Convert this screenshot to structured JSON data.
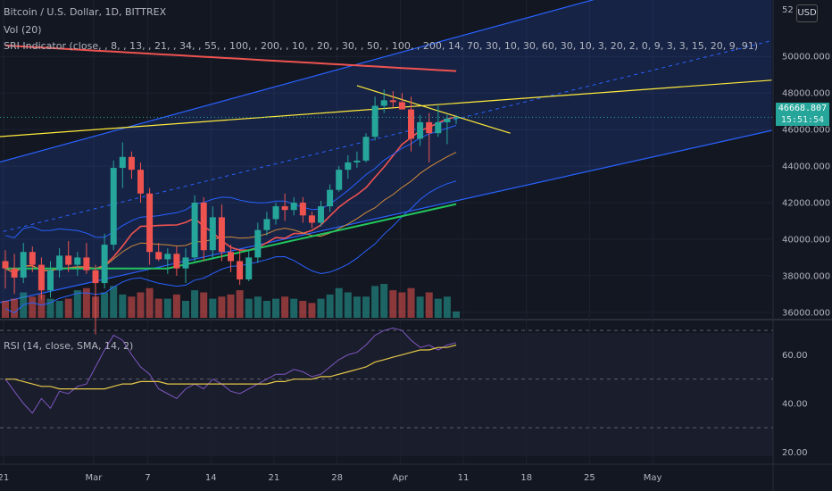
{
  "header": {
    "symbol": "Bitcoin / U.S. Dollar, 1D, BITTREX",
    "vol": "Vol (20)",
    "sri": "SRI Indicator (close, , 8, , 13, , 21, , 34, , 55, , 100, , 200, , 10, , 20, , 30, , 50, , 100, , 200, 14, 70, 30, 10, 30, 60, 30, 10, 3, 20, 2, 0, 9, 3, 3, 15, 20, 9, 91)",
    "rsi": "RSI (14, close, SMA, 14, 2)",
    "currency": "USD",
    "last_price": "46668.807",
    "countdown": "15:51:54",
    "top_price_partial": "52"
  },
  "colors": {
    "up": "#26a69a",
    "down": "#ef5350",
    "bg": "#131722",
    "ma200": "#ef5350",
    "ma50": "#22c55e",
    "bb": "#2962ff",
    "channel": "#2962ff",
    "trend": "#ffeb3b",
    "rsi": "#7e57c2",
    "rsi_ma": "#e6c84a"
  },
  "chart_data": [
    {
      "type": "candlestick",
      "title": "Bitcoin / U.S. Dollar, 1D, BITTREX",
      "y_ticks": [
        "50000.000",
        "48000.000",
        "46000.000",
        "44000.000",
        "42000.000",
        "40000.000",
        "38000.000",
        "36000.000"
      ],
      "x_ticks": [
        "21",
        "Mar",
        "7",
        "14",
        "21",
        "28",
        "Apr",
        "11",
        "18",
        "25",
        "May"
      ],
      "ylim": [
        35600,
        52600
      ],
      "grid": true,
      "candles": [
        [
          38800,
          39400,
          37300,
          38400
        ],
        [
          38400,
          39200,
          37000,
          37900
        ],
        [
          37900,
          39800,
          37600,
          39300
        ],
        [
          39300,
          39600,
          38200,
          38600
        ],
        [
          38600,
          39000,
          36700,
          37200
        ],
        [
          37200,
          38800,
          36800,
          38300
        ],
        [
          38300,
          39500,
          37900,
          39100
        ],
        [
          39100,
          39900,
          38200,
          38600
        ],
        [
          38600,
          39300,
          38000,
          39000
        ],
        [
          39000,
          39800,
          38100,
          38300
        ],
        [
          38300,
          38600,
          34800,
          37600
        ],
        [
          37600,
          40300,
          37300,
          39700
        ],
        [
          39700,
          44300,
          39400,
          43900
        ],
        [
          43900,
          45300,
          42800,
          44500
        ],
        [
          44500,
          44800,
          43300,
          43800
        ],
        [
          43800,
          44200,
          42000,
          42500
        ],
        [
          42500,
          42800,
          38600,
          39300
        ],
        [
          39300,
          39800,
          38800,
          38900
        ],
        [
          38900,
          39500,
          38100,
          39200
        ],
        [
          39200,
          39600,
          38000,
          38400
        ],
        [
          38400,
          39500,
          37600,
          39000
        ],
        [
          39000,
          42400,
          38800,
          42000
        ],
        [
          42000,
          42300,
          38800,
          39400
        ],
        [
          39400,
          41800,
          38900,
          41200
        ],
        [
          41200,
          41900,
          38800,
          39300
        ],
        [
          39300,
          39700,
          38200,
          38800
        ],
        [
          38800,
          39400,
          37500,
          37800
        ],
        [
          37800,
          39400,
          37700,
          39000
        ],
        [
          39000,
          40900,
          38700,
          40500
        ],
        [
          40500,
          41500,
          40200,
          41100
        ],
        [
          41100,
          42000,
          40800,
          41800
        ],
        [
          41800,
          42500,
          41000,
          41600
        ],
        [
          41600,
          42300,
          41300,
          42000
        ],
        [
          42000,
          42300,
          40900,
          41300
        ],
        [
          41300,
          41500,
          40600,
          40900
        ],
        [
          40900,
          42100,
          40700,
          41800
        ],
        [
          41800,
          43000,
          41500,
          42700
        ],
        [
          42700,
          44000,
          42600,
          43800
        ],
        [
          43800,
          44600,
          43300,
          44200
        ],
        [
          44200,
          44800,
          43900,
          44300
        ],
        [
          44300,
          45800,
          44200,
          45600
        ],
        [
          45600,
          47800,
          45400,
          47300
        ],
        [
          47300,
          48200,
          46900,
          47600
        ],
        [
          47600,
          48100,
          47200,
          47500
        ],
        [
          47500,
          48000,
          47200,
          47100
        ],
        [
          47100,
          47800,
          44800,
          45500
        ],
        [
          45500,
          46800,
          45100,
          46400
        ],
        [
          46400,
          46900,
          44200,
          45800
        ],
        [
          45800,
          47300,
          45600,
          46400
        ],
        [
          46400,
          46800,
          45200,
          46600
        ],
        [
          46600,
          46800,
          46300,
          46668
        ]
      ],
      "volumes": [
        8,
        9,
        12,
        10,
        11,
        9,
        8,
        9,
        13,
        14,
        10,
        12,
        15,
        11,
        10,
        12,
        14,
        9,
        9,
        11,
        8,
        13,
        12,
        9,
        10,
        11,
        13,
        9,
        10,
        8,
        9,
        10,
        9,
        8,
        7,
        9,
        11,
        14,
        12,
        10,
        10,
        15,
        16,
        13,
        12,
        14,
        10,
        12,
        9,
        10,
        3
      ],
      "rsi": {
        "ylim": [
          15,
          73
        ],
        "ticks": [
          "60.00",
          "40.00",
          "20.00"
        ],
        "levels": [
          70,
          50,
          30
        ],
        "values": [
          50,
          45,
          40,
          36,
          42,
          38,
          45,
          44,
          47,
          48,
          55,
          62,
          68,
          66,
          60,
          55,
          52,
          46,
          44,
          42,
          46,
          48,
          46,
          50,
          48,
          45,
          44,
          46,
          48,
          50,
          52,
          52,
          54,
          53,
          51,
          52,
          55,
          58,
          60,
          61,
          64,
          68,
          70,
          71,
          70,
          66,
          63,
          64,
          62,
          64,
          65
        ],
        "ma": [
          50,
          50,
          49,
          48,
          47,
          47,
          46,
          46,
          46,
          46,
          46,
          46,
          47,
          48,
          48,
          49,
          49,
          49,
          48,
          48,
          48,
          48,
          48,
          48,
          48,
          48,
          48,
          48,
          48,
          48,
          49,
          49,
          50,
          50,
          50,
          51,
          51,
          52,
          53,
          54,
          55,
          57,
          58,
          59,
          60,
          61,
          62,
          62,
          63,
          63,
          64
        ]
      }
    }
  ]
}
